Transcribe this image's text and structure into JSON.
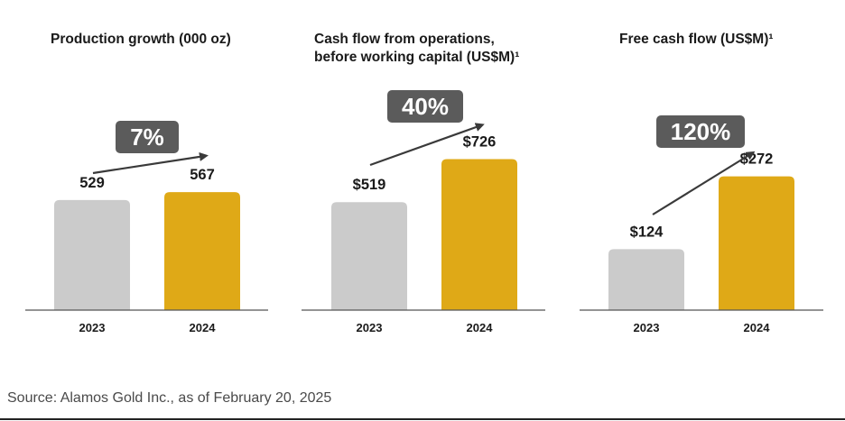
{
  "chart_data": [
    {
      "type": "bar",
      "title": "Production growth (000 oz)",
      "categories": [
        "2023",
        "2024"
      ],
      "values": [
        529,
        567
      ],
      "value_labels": [
        "529",
        "567"
      ],
      "growth_label": "7%",
      "colors": [
        "#cbcbcb",
        "#dfa917"
      ],
      "ylim": [
        0,
        1300
      ]
    },
    {
      "type": "bar",
      "title": "Cash flow from operations, before working capital (US$M)¹",
      "title_lines": [
        "Cash flow from operations,",
        "before working capital (US$M)¹"
      ],
      "categories": [
        "2023",
        "2024"
      ],
      "values": [
        519,
        726
      ],
      "value_labels": [
        "$519",
        "$726"
      ],
      "growth_label": "40%",
      "colors": [
        "#cbcbcb",
        "#dfa917"
      ],
      "ylim": [
        0,
        1300
      ]
    },
    {
      "type": "bar",
      "title": "Free cash flow (US$M)¹",
      "categories": [
        "2023",
        "2024"
      ],
      "values": [
        124,
        272
      ],
      "value_labels": [
        "$124",
        "$272"
      ],
      "growth_label": "120%",
      "colors": [
        "#cbcbcb",
        "#dfa917"
      ],
      "ylim": [
        0,
        550
      ]
    }
  ],
  "source": "Source: Alamos Gold Inc., as of February 20, 2025",
  "badge_color": "#5b5b5b",
  "arrow_color": "#3a3a3a"
}
